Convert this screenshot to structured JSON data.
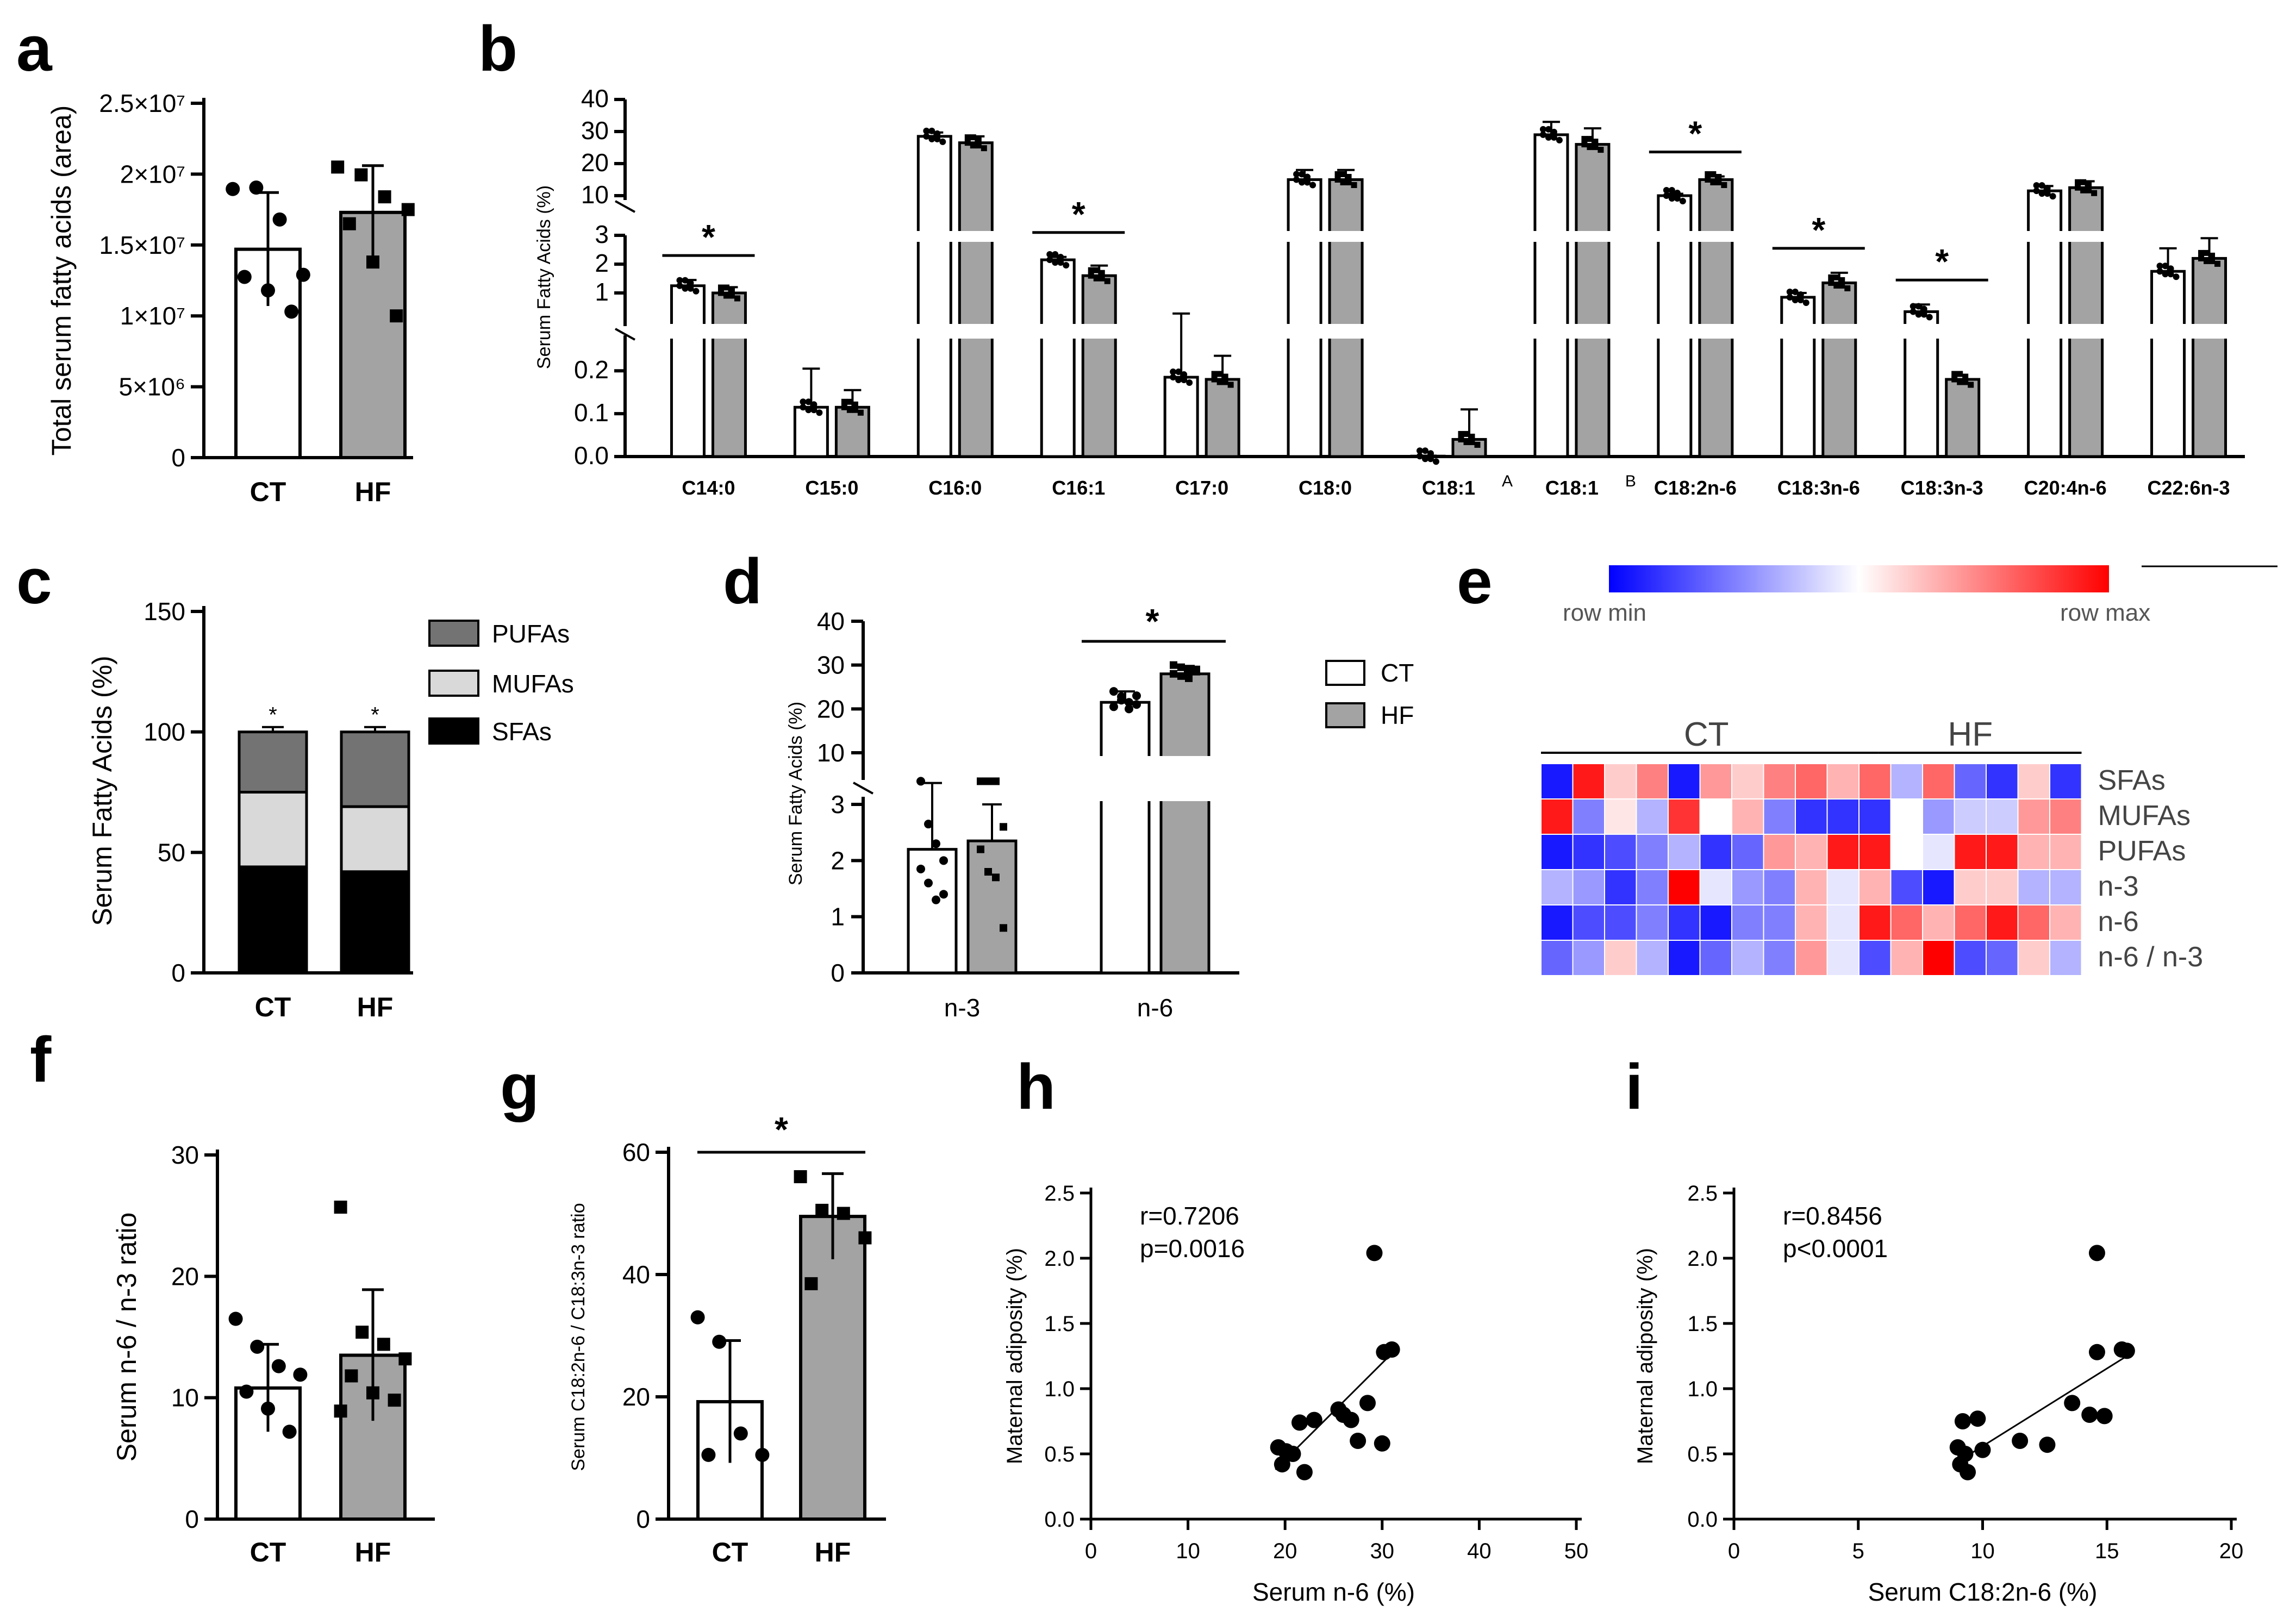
{
  "panel_labels": [
    "a",
    "b",
    "c",
    "d",
    "e",
    "f",
    "g",
    "h",
    "i"
  ],
  "colors": {
    "ct": "#ffffff",
    "hf": "#a3a3a3",
    "pufa": "#737373",
    "mufa": "#d9d9d9",
    "sfa": "#000000",
    "heat_min": "#0000ff",
    "heat_mid": "#ffffff",
    "heat_max": "#ff0000"
  },
  "chart_data": [
    {
      "id": "a",
      "type": "bar",
      "ylabel": "Total serum fatty acids (area)",
      "categories": [
        "CT",
        "HF"
      ],
      "yticks": [
        "0",
        "5×10⁶",
        "1×10⁷",
        "1.5×10⁷",
        "2×10⁷",
        "2.5×10⁷"
      ],
      "ylim": [
        0,
        25000000
      ],
      "values": [
        14700000,
        17300000
      ],
      "sd": [
        4000000,
        3300000
      ],
      "points": [
        [
          18950000,
          19050000,
          16800000,
          12900000,
          12750000,
          11800000,
          10300000
        ],
        [
          20500000,
          19950000,
          18400000,
          17500000,
          16500000,
          13800000,
          10000000
        ]
      ]
    },
    {
      "id": "b",
      "type": "bar",
      "ylabel": "Serum Fatty Acids (%)",
      "categories": [
        "C14:0",
        "C15:0",
        "C16:0",
        "C16:1",
        "C17:0",
        "C18:0",
        "C18:1",
        "C18:1",
        "C18:2n-6",
        "C18:3n-6",
        "C18:3n-3",
        "C20:4n-6",
        "C22:6n-3"
      ],
      "superscripts": [
        "",
        "",
        "",
        "",
        "",
        "",
        "A",
        "B",
        "",
        "",
        "",
        "",
        ""
      ],
      "yticks_low": [
        "0.0",
        "0.1",
        "0.2"
      ],
      "yticks_mid": [
        "1",
        "2",
        "3"
      ],
      "yticks_high": [
        "10",
        "20",
        "30",
        "40"
      ],
      "ylim_low": [
        0,
        0.27
      ],
      "ylim_mid": [
        0,
        3
      ],
      "ylim_high": [
        10,
        40
      ],
      "ct": [
        1.25,
        0.115,
        28.5,
        2.15,
        0.185,
        15.0,
        0.001,
        29.0,
        9.6,
        0.85,
        0.35,
        11.5,
        1.75
      ],
      "hf": [
        1.0,
        0.115,
        26.5,
        1.6,
        0.18,
        15.0,
        0.04,
        26.0,
        15.0,
        1.35,
        0.18,
        12.5,
        2.2
      ],
      "ct_sd": [
        0.2,
        0.09,
        1.2,
        0.1,
        0.1,
        3.0,
        0.001,
        4.0,
        1.0,
        0.15,
        0.25,
        1.5,
        0.8
      ],
      "hf_sd": [
        0.2,
        0.04,
        2.0,
        0.35,
        0.055,
        3.0,
        0.07,
        5.0,
        1.0,
        0.35,
        0.0,
        2.0,
        0.7
      ],
      "significant": [
        true,
        false,
        false,
        true,
        false,
        false,
        false,
        false,
        true,
        true,
        true,
        false,
        false
      ],
      "star": "*"
    },
    {
      "id": "c",
      "type": "bar",
      "stacked": true,
      "ylabel": "Serum Fatty Acids (%)",
      "categories": [
        "CT",
        "HF"
      ],
      "yticks": [
        "0",
        "50",
        "100",
        "150"
      ],
      "ylim": [
        0,
        150
      ],
      "series": [
        {
          "name": "SFAs",
          "values": [
            44,
            42
          ],
          "sd": [
            6,
            5
          ]
        },
        {
          "name": "MUFAs",
          "values": [
            31,
            27
          ],
          "sd": [
            7,
            6
          ]
        },
        {
          "name": "PUFAs",
          "values": [
            25,
            31
          ],
          "sd": [
            2,
            2
          ]
        }
      ],
      "star": "*"
    },
    {
      "id": "d",
      "type": "bar",
      "ylabel": "Serum Fatty Acids (%)",
      "categories": [
        "n-3",
        "n-6"
      ],
      "yticks_low": [
        "0",
        "1",
        "2",
        "3"
      ],
      "yticks_high": [
        "10",
        "20",
        "30",
        "40"
      ],
      "ylim_low": [
        0,
        3
      ],
      "ylim_high": [
        10,
        40
      ],
      "series": [
        {
          "name": "CT",
          "values": [
            2.2,
            21.5
          ],
          "sd": [
            0.9,
            2.5
          ]
        },
        {
          "name": "HF",
          "values": [
            2.35,
            28.0
          ],
          "sd": [
            0.65,
            1.8
          ]
        }
      ],
      "points_ct": [
        [
          3.5,
          2.65,
          2.3,
          2.0,
          1.85,
          1.6,
          1.3,
          1.4
        ],
        [
          24,
          22,
          21.5,
          21,
          20.5,
          22.8,
          20,
          23
        ]
      ],
      "points_hf": [
        [
          3.5,
          3.5,
          3.5,
          2.6,
          2.2,
          1.8,
          1.7,
          0.8
        ],
        [
          30,
          29.5,
          29,
          28.5,
          28,
          27.5,
          27,
          29
        ]
      ],
      "star": "*"
    },
    {
      "id": "e",
      "type": "heatmap",
      "groups": [
        "CT",
        "HF"
      ],
      "rows": [
        "SFAs",
        "MUFAs",
        "PUFAs",
        "n-3",
        "n-6",
        "n-6 / n-3"
      ],
      "legend_min": "row min",
      "legend_max": "row max",
      "values": [
        [
          -0.9,
          0.9,
          0.2,
          0.5,
          -0.9,
          0.4,
          0.2,
          0.5,
          0.6,
          0.3,
          0.6,
          -0.3,
          0.6,
          -0.6,
          -0.8,
          0.2,
          -0.8
        ],
        [
          0.9,
          -0.5,
          0.1,
          -0.3,
          0.8,
          0,
          0.3,
          -0.5,
          -0.8,
          -0.8,
          -0.8,
          0,
          -0.4,
          -0.2,
          -0.2,
          0.4,
          0.5
        ],
        [
          -0.9,
          -0.8,
          -0.7,
          -0.5,
          -0.3,
          -0.8,
          -0.6,
          0.4,
          0.3,
          0.9,
          0.9,
          0,
          -0.1,
          0.9,
          0.9,
          0.3,
          0.3
        ],
        [
          -0.3,
          -0.4,
          -0.8,
          -0.5,
          1.0,
          -0.1,
          -0.4,
          -0.5,
          0.3,
          -0.1,
          0.3,
          -0.7,
          -0.9,
          0.2,
          0.2,
          -0.3,
          -0.3
        ],
        [
          -0.9,
          -0.7,
          -0.7,
          -0.5,
          -0.8,
          -0.9,
          -0.5,
          -0.5,
          0.3,
          -0.1,
          0.9,
          0.6,
          0.3,
          0.6,
          0.9,
          0.6,
          0.3
        ],
        [
          -0.6,
          -0.4,
          0.2,
          -0.3,
          -0.9,
          -0.6,
          -0.3,
          -0.5,
          0.4,
          -0.1,
          -0.7,
          0.3,
          1.0,
          -0.7,
          -0.6,
          0.2,
          -0.3
        ]
      ]
    },
    {
      "id": "f",
      "type": "bar",
      "ylabel": "Serum n-6 / n-3 ratio",
      "categories": [
        "CT",
        "HF"
      ],
      "yticks": [
        "0",
        "10",
        "20",
        "30"
      ],
      "ylim": [
        0,
        30
      ],
      "values": [
        10.8,
        13.5
      ],
      "sd": [
        3.6,
        5.4
      ],
      "points": [
        [
          16.5,
          14.2,
          12.6,
          11.9,
          10.5,
          9.1,
          7.2
        ],
        [
          25.7,
          15.4,
          14.4,
          13.2,
          11.8,
          10.4,
          9.8,
          8.9
        ]
      ]
    },
    {
      "id": "g",
      "type": "bar",
      "ylabel": "Serum C18:2n-6 / C18:3n-3 ratio",
      "categories": [
        "CT",
        "HF"
      ],
      "yticks": [
        "0",
        "20",
        "40",
        "60"
      ],
      "ylim": [
        0,
        60
      ],
      "values": [
        19.2,
        49.5
      ],
      "sd": [
        10,
        7
      ],
      "points": [
        [
          33,
          29,
          14,
          10.5,
          10.5
        ],
        [
          56,
          50.5,
          50,
          46,
          38.5
        ]
      ],
      "star": "*"
    },
    {
      "id": "h",
      "type": "scatter",
      "xlabel": "Serum n-6 (%)",
      "ylabel": "Maternal adiposity (%)",
      "xticks": [
        "0",
        "10",
        "20",
        "30",
        "40",
        "50"
      ],
      "yticks": [
        "0.0",
        "0.5",
        "1.0",
        "1.5",
        "2.0",
        "2.5"
      ],
      "xlim": [
        0,
        50
      ],
      "ylim": [
        0,
        2.5
      ],
      "stat_r": "r=0.7206",
      "stat_p": "p=0.0016",
      "x": [
        19.3,
        19.7,
        20.8,
        20.1,
        22.0,
        21.5,
        23.0,
        26.0,
        25.5,
        26.8,
        27.5,
        28.5,
        29.2,
        30.2,
        31.0,
        30.0
      ],
      "y": [
        0.55,
        0.42,
        0.5,
        0.52,
        0.36,
        0.74,
        0.76,
        0.8,
        0.84,
        0.76,
        0.6,
        0.89,
        2.04,
        1.28,
        1.3,
        0.58
      ],
      "fit": [
        [
          19,
          0.38
        ],
        [
          31,
          1.27
        ]
      ]
    },
    {
      "id": "i",
      "type": "scatter",
      "xlabel": "Serum C18:2n-6 (%)",
      "ylabel": "Maternal adiposity (%)",
      "xticks": [
        "0",
        "5",
        "10",
        "15",
        "20"
      ],
      "yticks": [
        "0.0",
        "0.5",
        "1.0",
        "1.5",
        "2.0",
        "2.5"
      ],
      "xlim": [
        0,
        20
      ],
      "ylim": [
        0,
        2.5
      ],
      "stat_r": "r=0.8456",
      "stat_p": "p<0.0001",
      "x": [
        9.0,
        9.1,
        9.2,
        9.4,
        9.3,
        10.0,
        9.8,
        11.5,
        12.6,
        13.6,
        14.3,
        14.6,
        14.9,
        15.6,
        15.8,
        14.6
      ],
      "y": [
        0.55,
        0.42,
        0.75,
        0.36,
        0.5,
        0.53,
        0.77,
        0.6,
        0.57,
        0.89,
        0.8,
        2.04,
        0.79,
        1.3,
        1.29,
        1.28
      ],
      "fit": [
        [
          9,
          0.44
        ],
        [
          15.8,
          1.25
        ]
      ]
    }
  ]
}
